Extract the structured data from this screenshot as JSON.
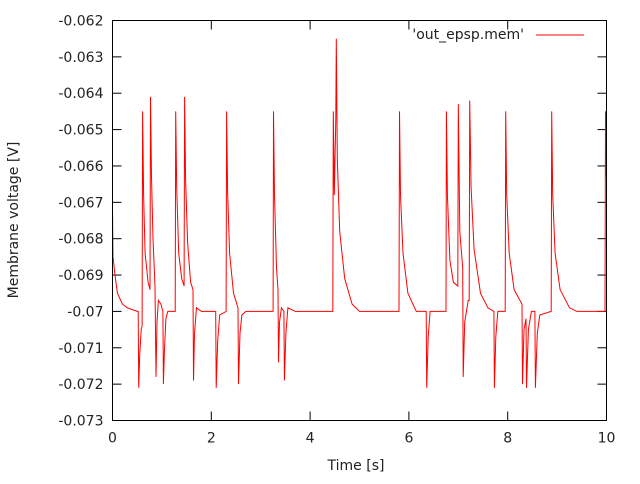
{
  "chart_data": {
    "type": "line",
    "title": "",
    "xlabel": "Time [s]",
    "ylabel": "Membrane voltage [V]",
    "xlim": [
      0,
      10
    ],
    "ylim": [
      -0.073,
      -0.062
    ],
    "xticks": [
      "0",
      "2",
      "4",
      "6",
      "8",
      "10"
    ],
    "yticks": [
      "-0.062",
      "-0.063",
      "-0.064",
      "-0.065",
      "-0.066",
      "-0.067",
      "-0.068",
      "-0.069",
      "-0.07",
      "-0.071",
      "-0.072",
      "-0.073"
    ],
    "grid": false,
    "legend_position": "top-right",
    "series": [
      {
        "name": "'out_epsp.mem'",
        "color": "#ff0000",
        "points": [
          [
            0,
            -0.0672
          ],
          [
            0.01,
            -0.0685
          ],
          [
            0.05,
            -0.069
          ],
          [
            0.1,
            -0.0695
          ],
          [
            0.2,
            -0.0698
          ],
          [
            0.3,
            -0.0699
          ],
          [
            0.5,
            -0.07
          ],
          [
            0.52,
            -0.07
          ],
          [
            0.53,
            -0.0721
          ],
          [
            0.55,
            -0.0712
          ],
          [
            0.58,
            -0.0705
          ],
          [
            0.6,
            -0.0704
          ],
          [
            0.61,
            -0.0645
          ],
          [
            0.63,
            -0.0668
          ],
          [
            0.66,
            -0.0684
          ],
          [
            0.72,
            -0.0692
          ],
          [
            0.76,
            -0.0694
          ],
          [
            0.77,
            -0.0641
          ],
          [
            0.79,
            -0.0663
          ],
          [
            0.82,
            -0.068
          ],
          [
            0.86,
            -0.0693
          ],
          [
            0.88,
            -0.0718
          ],
          [
            0.9,
            -0.0703
          ],
          [
            0.93,
            -0.0697
          ],
          [
            0.98,
            -0.0698
          ],
          [
            1.02,
            -0.07
          ],
          [
            1.03,
            -0.072
          ],
          [
            1.05,
            -0.0711
          ],
          [
            1.08,
            -0.0702
          ],
          [
            1.12,
            -0.07
          ],
          [
            1.27,
            -0.07
          ],
          [
            1.28,
            -0.0645
          ],
          [
            1.3,
            -0.0666
          ],
          [
            1.34,
            -0.0684
          ],
          [
            1.4,
            -0.0691
          ],
          [
            1.45,
            -0.0693
          ],
          [
            1.46,
            -0.0641
          ],
          [
            1.48,
            -0.0664
          ],
          [
            1.52,
            -0.0681
          ],
          [
            1.58,
            -0.0692
          ],
          [
            1.63,
            -0.0694
          ],
          [
            1.64,
            -0.0719
          ],
          [
            1.66,
            -0.0706
          ],
          [
            1.7,
            -0.0699
          ],
          [
            1.8,
            -0.07
          ],
          [
            2.09,
            -0.07
          ],
          [
            2.1,
            -0.0721
          ],
          [
            2.13,
            -0.0708
          ],
          [
            2.17,
            -0.0701
          ],
          [
            2.3,
            -0.07
          ],
          [
            2.31,
            -0.0645
          ],
          [
            2.33,
            -0.0667
          ],
          [
            2.37,
            -0.0684
          ],
          [
            2.45,
            -0.0695
          ],
          [
            2.54,
            -0.0699
          ],
          [
            2.55,
            -0.072
          ],
          [
            2.58,
            -0.0706
          ],
          [
            2.62,
            -0.0701
          ],
          [
            2.7,
            -0.07
          ],
          [
            3.25,
            -0.07
          ],
          [
            3.26,
            -0.0645
          ],
          [
            3.28,
            -0.0668
          ],
          [
            3.32,
            -0.0688
          ],
          [
            3.35,
            -0.0694
          ],
          [
            3.36,
            -0.0714
          ],
          [
            3.38,
            -0.0703
          ],
          [
            3.42,
            -0.0699
          ],
          [
            3.47,
            -0.07
          ],
          [
            3.48,
            -0.0719
          ],
          [
            3.51,
            -0.0706
          ],
          [
            3.55,
            -0.0699
          ],
          [
            3.7,
            -0.07
          ],
          [
            4.46,
            -0.07
          ],
          [
            4.47,
            -0.0645
          ],
          [
            4.49,
            -0.0668
          ],
          [
            4.52,
            -0.0647
          ],
          [
            4.53,
            -0.0625
          ],
          [
            4.55,
            -0.0658
          ],
          [
            4.6,
            -0.0678
          ],
          [
            4.7,
            -0.0691
          ],
          [
            4.85,
            -0.0698
          ],
          [
            5.0,
            -0.07
          ],
          [
            5.8,
            -0.07
          ],
          [
            5.81,
            -0.0645
          ],
          [
            5.83,
            -0.0668
          ],
          [
            5.88,
            -0.0684
          ],
          [
            5.98,
            -0.0695
          ],
          [
            6.15,
            -0.07
          ],
          [
            6.35,
            -0.07
          ],
          [
            6.36,
            -0.0721
          ],
          [
            6.39,
            -0.0707
          ],
          [
            6.43,
            -0.07
          ],
          [
            6.75,
            -0.07
          ],
          [
            6.76,
            -0.0645
          ],
          [
            6.78,
            -0.0668
          ],
          [
            6.83,
            -0.0686
          ],
          [
            6.9,
            -0.0692
          ],
          [
            6.99,
            -0.0693
          ],
          [
            7.0,
            -0.0643
          ],
          [
            7.03,
            -0.0678
          ],
          [
            7.09,
            -0.0688
          ],
          [
            7.1,
            -0.0718
          ],
          [
            7.13,
            -0.0703
          ],
          [
            7.2,
            -0.0697
          ],
          [
            7.22,
            -0.0697
          ],
          [
            7.23,
            -0.0642
          ],
          [
            7.26,
            -0.0666
          ],
          [
            7.32,
            -0.0683
          ],
          [
            7.45,
            -0.0695
          ],
          [
            7.6,
            -0.0699
          ],
          [
            7.72,
            -0.07
          ],
          [
            7.73,
            -0.0721
          ],
          [
            7.76,
            -0.0707
          ],
          [
            7.8,
            -0.07
          ],
          [
            7.95,
            -0.07
          ],
          [
            7.96,
            -0.0645
          ],
          [
            7.98,
            -0.0668
          ],
          [
            8.03,
            -0.0684
          ],
          [
            8.13,
            -0.0694
          ],
          [
            8.29,
            -0.0698
          ],
          [
            8.3,
            -0.072
          ],
          [
            8.33,
            -0.0705
          ],
          [
            8.37,
            -0.0702
          ],
          [
            8.38,
            -0.0721
          ],
          [
            8.42,
            -0.0705
          ],
          [
            8.48,
            -0.07
          ],
          [
            8.55,
            -0.07
          ],
          [
            8.56,
            -0.0721
          ],
          [
            8.6,
            -0.0706
          ],
          [
            8.65,
            -0.0701
          ],
          [
            8.88,
            -0.07
          ],
          [
            8.89,
            -0.0645
          ],
          [
            8.91,
            -0.0668
          ],
          [
            8.96,
            -0.0684
          ],
          [
            9.06,
            -0.0694
          ],
          [
            9.25,
            -0.0699
          ],
          [
            9.4,
            -0.07
          ],
          [
            9.97,
            -0.07
          ],
          [
            9.98,
            -0.0645
          ],
          [
            9.99,
            -0.0663
          ],
          [
            10,
            -0.066
          ]
        ]
      }
    ]
  }
}
